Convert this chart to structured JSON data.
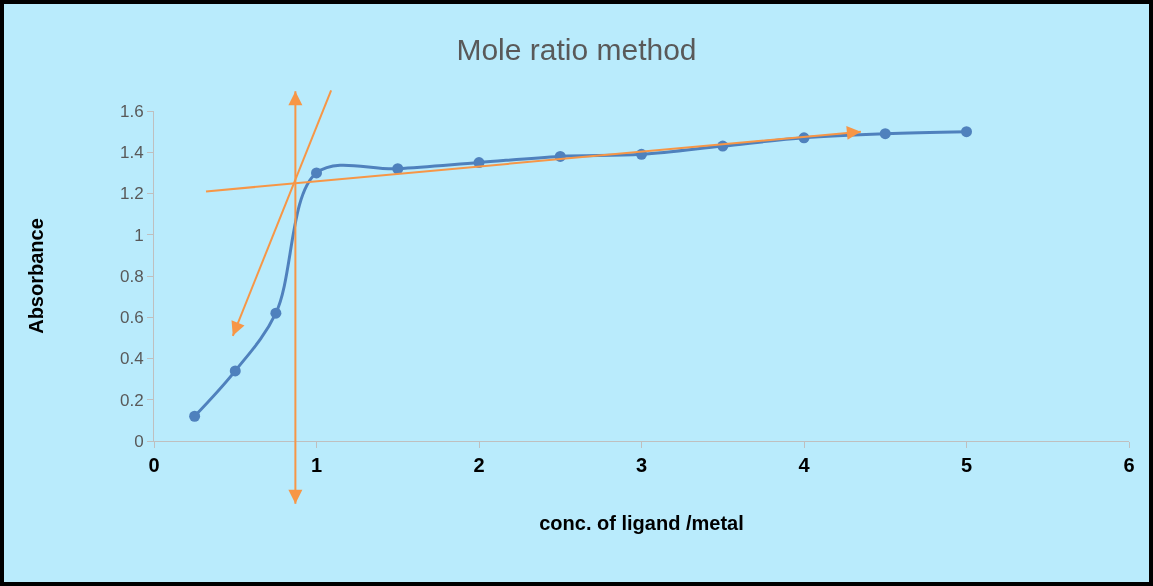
{
  "chart_data": {
    "type": "line",
    "title": "Mole ratio method",
    "xlabel": "conc. of ligand /metal",
    "ylabel": "Absorbance",
    "x": [
      0.25,
      0.5,
      0.75,
      1,
      1.5,
      2,
      2.5,
      3,
      3.5,
      4,
      4.5,
      5
    ],
    "series": [
      {
        "color": "#4f81bd",
        "values": [
          0.12,
          0.34,
          0.62,
          1.3,
          1.32,
          1.35,
          1.38,
          1.39,
          1.43,
          1.47,
          1.49,
          1.5
        ]
      }
    ],
    "ref_lines": [
      {
        "axis": "x",
        "value": 0.87,
        "color": "#f79646"
      }
    ],
    "marker": "circle",
    "xlim": [
      0,
      6
    ],
    "xticks": [
      0,
      1,
      2,
      3,
      4,
      5,
      6
    ],
    "ylim": [
      0,
      1.6
    ],
    "yticks": [
      0,
      0.2,
      0.4,
      0.6,
      0.8,
      1,
      1.2,
      1.4,
      1.6
    ],
    "grid": false
  }
}
